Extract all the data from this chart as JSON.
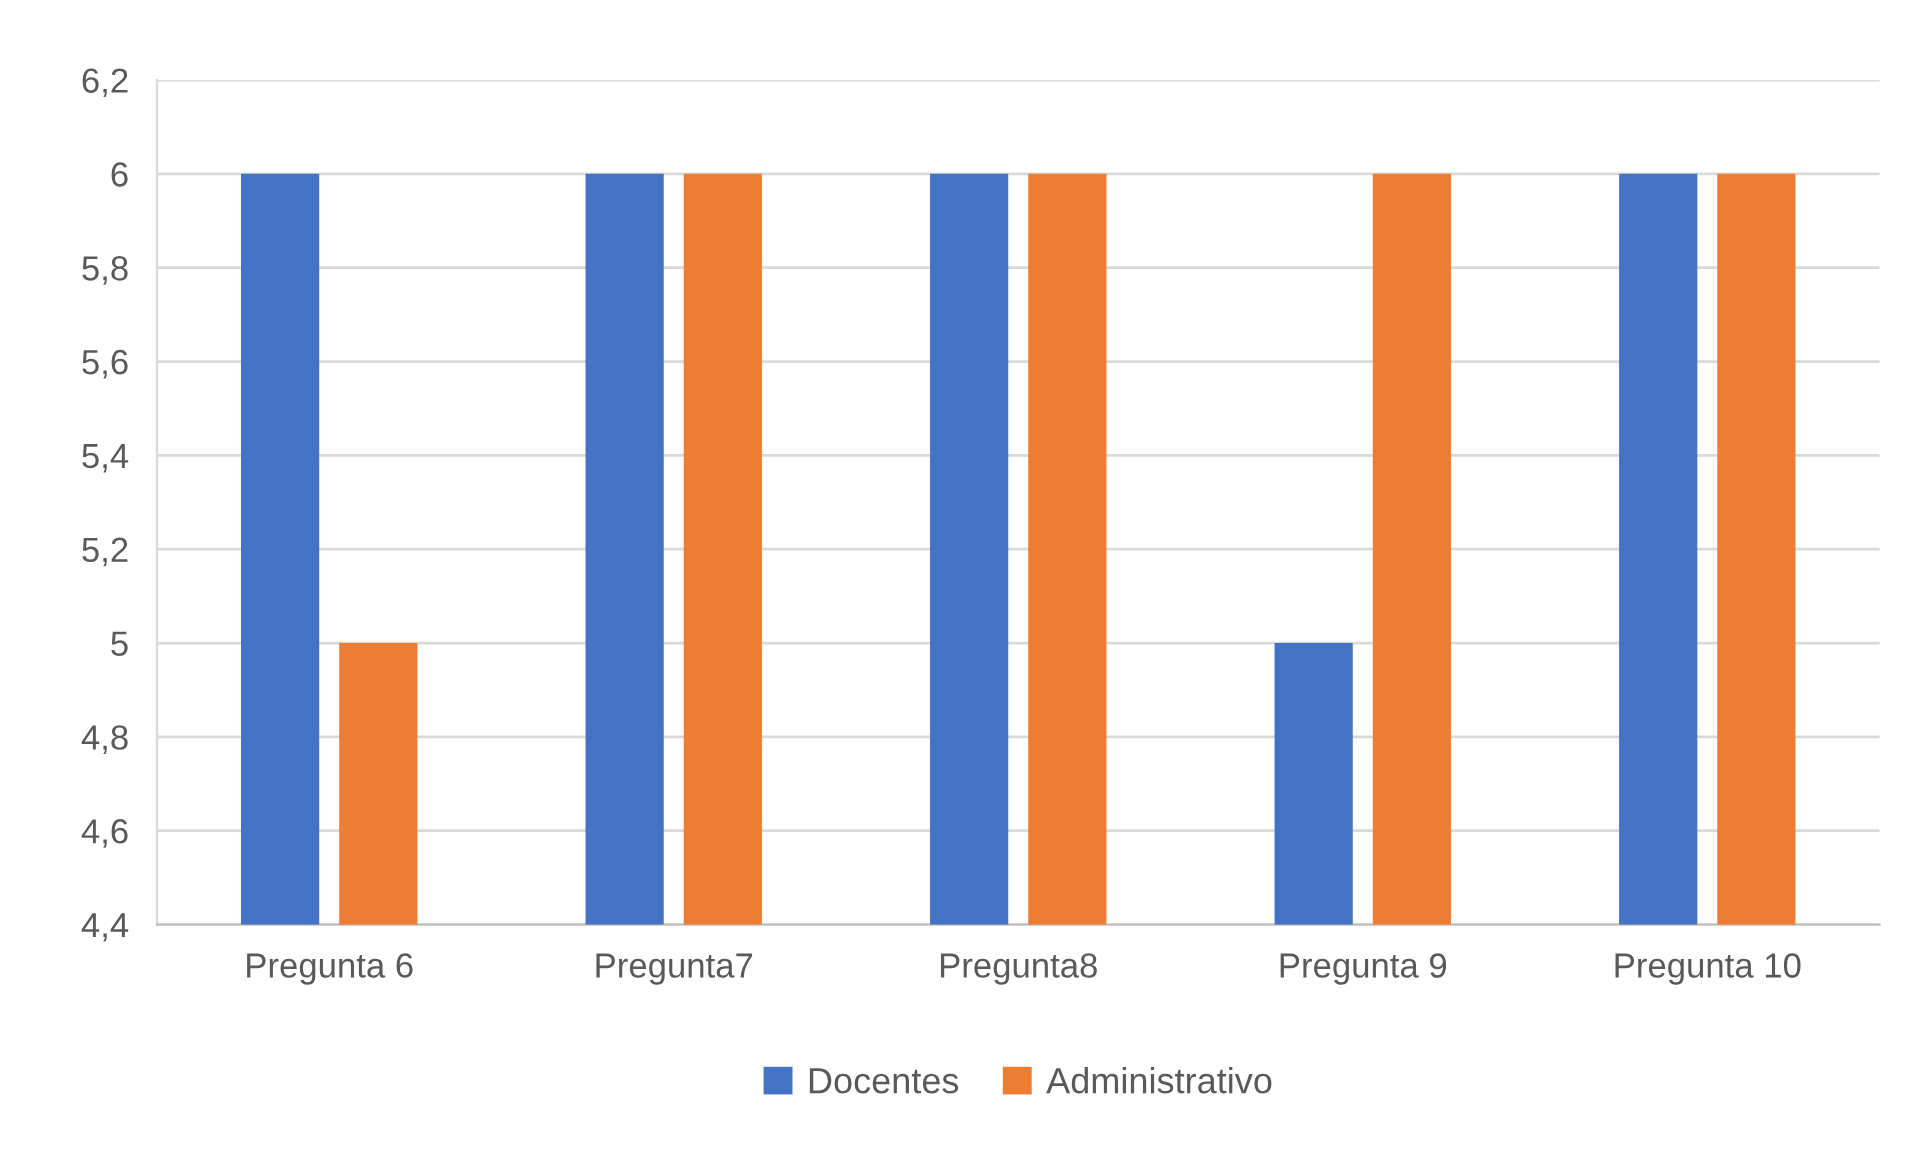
{
  "chart_data": {
    "type": "bar",
    "categories": [
      "Pregunta 6",
      "Pregunta7",
      "Pregunta8",
      "Pregunta 9",
      "Pregunta 10"
    ],
    "series": [
      {
        "name": "Docentes",
        "color": "#4472c4",
        "values": [
          6,
          6,
          6,
          5,
          6
        ]
      },
      {
        "name": "Administrativo",
        "color": "#ed7d31",
        "values": [
          5,
          6,
          6,
          6,
          6
        ]
      }
    ],
    "ylim": [
      4.4,
      6.2
    ],
    "yticks": [
      {
        "value": 4.4,
        "label": "4,4"
      },
      {
        "value": 4.6,
        "label": "4,6"
      },
      {
        "value": 4.8,
        "label": "4,8"
      },
      5,
      {
        "value": 5.2,
        "label": "5,2"
      },
      {
        "value": 5.4,
        "label": "5,4"
      },
      {
        "value": 5.6,
        "label": "5,6"
      },
      {
        "value": 5.8,
        "label": "5,8"
      },
      6,
      {
        "value": 6.2,
        "label": "6,2"
      }
    ],
    "grid": "y",
    "legend": "bottom"
  }
}
